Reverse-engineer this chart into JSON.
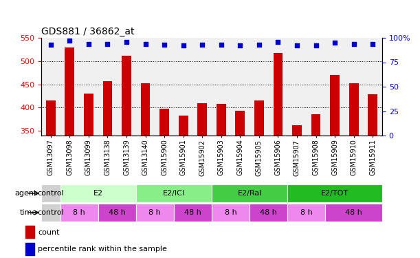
{
  "title": "GDS881 / 36862_at",
  "samples": [
    "GSM13097",
    "GSM13098",
    "GSM13099",
    "GSM13138",
    "GSM13139",
    "GSM13140",
    "GSM15900",
    "GSM15901",
    "GSM15902",
    "GSM15903",
    "GSM15904",
    "GSM15905",
    "GSM15906",
    "GSM15907",
    "GSM15908",
    "GSM15909",
    "GSM15910",
    "GSM15911"
  ],
  "counts": [
    415,
    530,
    430,
    457,
    512,
    453,
    398,
    383,
    410,
    408,
    393,
    415,
    517,
    362,
    386,
    470,
    453,
    428
  ],
  "percentiles": [
    93,
    97,
    94,
    94,
    96,
    94,
    93,
    92,
    93,
    93,
    92,
    93,
    96,
    92,
    92,
    95,
    94,
    94
  ],
  "ylim_left": [
    340,
    550
  ],
  "ylim_right": [
    0,
    100
  ],
  "bar_color": "#cc0000",
  "dot_color": "#0000cc",
  "chart_bg": "#f0f0f0",
  "agent_draw": [
    [
      0,
      1,
      "#d0d0d0",
      "control"
    ],
    [
      1,
      4,
      "#ccffcc",
      "E2"
    ],
    [
      5,
      4,
      "#88ee88",
      "E2/ICI"
    ],
    [
      9,
      4,
      "#44cc44",
      "E2/Ral"
    ],
    [
      13,
      5,
      "#22bb22",
      "E2/TOT"
    ]
  ],
  "time_draw": [
    [
      0,
      1,
      "#d0d0d0",
      "control"
    ],
    [
      1,
      2,
      "#ee88ee",
      "8 h"
    ],
    [
      3,
      2,
      "#cc44cc",
      "48 h"
    ],
    [
      5,
      2,
      "#ee88ee",
      "8 h"
    ],
    [
      7,
      2,
      "#cc44cc",
      "48 h"
    ],
    [
      9,
      2,
      "#ee88ee",
      "8 h"
    ],
    [
      11,
      2,
      "#cc44cc",
      "48 h"
    ],
    [
      13,
      2,
      "#ee88ee",
      "8 h"
    ],
    [
      15,
      3,
      "#cc44cc",
      "48 h"
    ]
  ],
  "legend_count_color": "#cc0000",
  "legend_dot_color": "#0000cc",
  "tick_label_fontsize": 7,
  "title_fontsize": 10,
  "yticks_left": [
    350,
    400,
    450,
    500,
    550
  ],
  "yticks_right": [
    0,
    25,
    50,
    75,
    100
  ],
  "hgrid_vals": [
    400,
    450,
    500
  ]
}
